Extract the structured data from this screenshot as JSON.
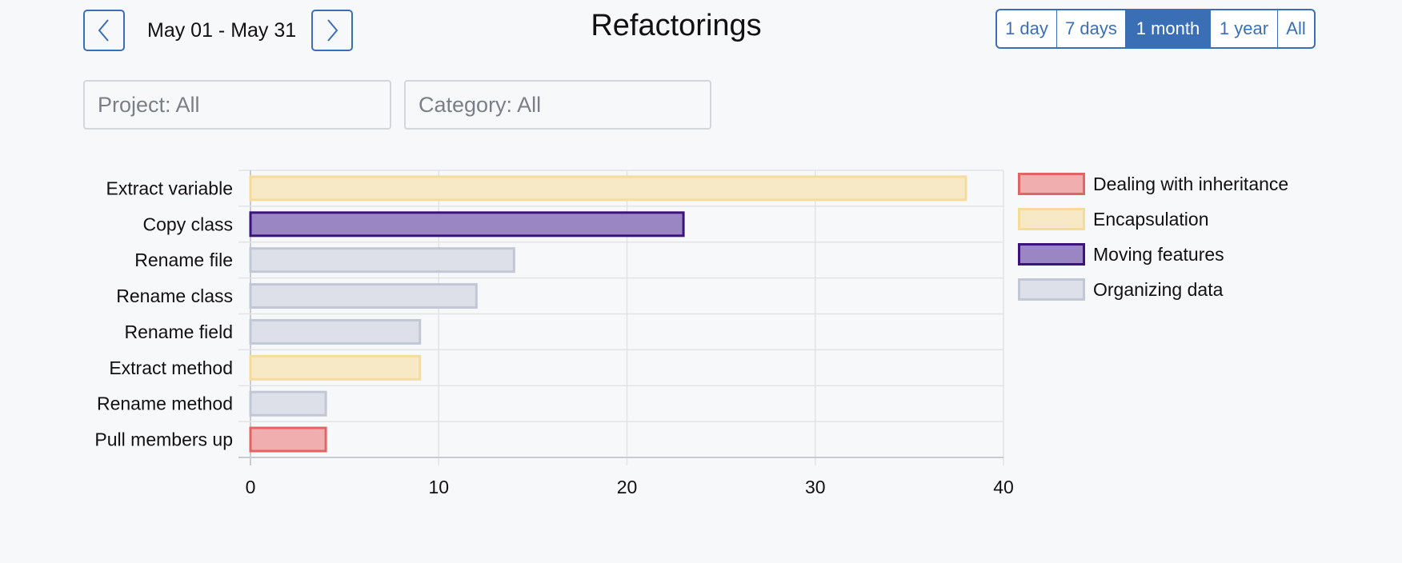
{
  "header": {
    "date_range": "May 01 - May 31",
    "title": "Refactorings",
    "prev_icon": "chevron-left-icon",
    "next_icon": "chevron-right-icon"
  },
  "time_ranges": [
    {
      "label": "1 day",
      "active": false
    },
    {
      "label": "7 days",
      "active": false
    },
    {
      "label": "1 month",
      "active": true
    },
    {
      "label": "1 year",
      "active": false
    },
    {
      "label": "All",
      "active": false
    }
  ],
  "filters": {
    "project": "Project: All",
    "category": "Category: All"
  },
  "colors": {
    "accent": "#3a6fb5",
    "Dealing with inheritance": {
      "fill": "#f1aeae",
      "stroke": "#e06666"
    },
    "Encapsulation": {
      "fill": "#f7e8c6",
      "stroke": "#f6dc9b"
    },
    "Moving features": {
      "fill": "#9a86c3",
      "stroke": "#3c137a"
    },
    "Organizing data": {
      "fill": "#dde0e9",
      "stroke": "#c2c7d5"
    }
  },
  "chart_data": {
    "type": "bar",
    "orientation": "horizontal",
    "categories": [
      "Extract variable",
      "Copy class",
      "Rename file",
      "Rename class",
      "Rename field",
      "Extract method",
      "Rename method",
      "Pull members up"
    ],
    "values": [
      38,
      23,
      14,
      12,
      9,
      9,
      4,
      4
    ],
    "bar_category": [
      "Encapsulation",
      "Moving features",
      "Organizing data",
      "Organizing data",
      "Organizing data",
      "Encapsulation",
      "Organizing data",
      "Dealing with inheritance"
    ],
    "legend": [
      "Dealing with inheritance",
      "Encapsulation",
      "Moving features",
      "Organizing data"
    ],
    "legend_position": "right",
    "xlim": [
      0,
      40
    ],
    "xticks": [
      0,
      10,
      20,
      30,
      40
    ],
    "grid": true,
    "title": "",
    "xlabel": "",
    "ylabel": ""
  }
}
